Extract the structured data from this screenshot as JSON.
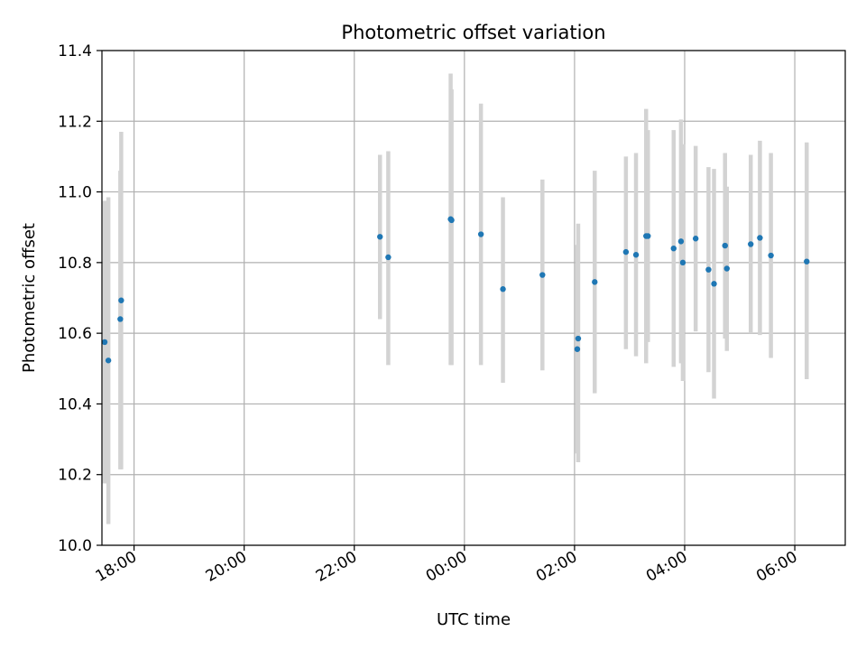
{
  "chart_data": {
    "type": "scatter",
    "title": "Photometric offset variation",
    "xlabel": "UTC time",
    "ylabel": "Photometric offset",
    "x_axis": {
      "kind": "time",
      "domain_start": "17:25",
      "domain_end": "06:55",
      "tick_labels": [
        "18:00",
        "20:00",
        "22:00",
        "00:00",
        "02:00",
        "04:00",
        "06:00"
      ]
    },
    "ylim": [
      10.0,
      11.4
    ],
    "y_ticks": [
      "10.0",
      "10.2",
      "10.4",
      "10.6",
      "10.8",
      "11.0",
      "11.2",
      "11.4"
    ],
    "grid": true,
    "marker_color": "#1f77b4",
    "errorbar_color": "#d3d3d3",
    "points": [
      {
        "time": "17:28",
        "y": 10.575,
        "ylo": 10.175,
        "yhi": 10.975
      },
      {
        "time": "17:32",
        "y": 10.523,
        "ylo": 10.06,
        "yhi": 10.985
      },
      {
        "time": "17:45",
        "y": 10.64,
        "ylo": 10.215,
        "yhi": 11.06
      },
      {
        "time": "17:46",
        "y": 10.693,
        "ylo": 10.215,
        "yhi": 11.17
      },
      {
        "time": "22:28",
        "y": 10.873,
        "ylo": 10.64,
        "yhi": 11.105
      },
      {
        "time": "22:37",
        "y": 10.815,
        "ylo": 10.51,
        "yhi": 11.115
      },
      {
        "time": "23:45",
        "y": 10.923,
        "ylo": 10.51,
        "yhi": 11.335
      },
      {
        "time": "23:46",
        "y": 10.92,
        "ylo": 10.51,
        "yhi": 11.29
      },
      {
        "time": "00:18",
        "y": 10.88,
        "ylo": 10.51,
        "yhi": 11.25
      },
      {
        "time": "00:42",
        "y": 10.725,
        "ylo": 10.46,
        "yhi": 10.985
      },
      {
        "time": "01:25",
        "y": 10.765,
        "ylo": 10.495,
        "yhi": 11.035
      },
      {
        "time": "02:03",
        "y": 10.555,
        "ylo": 10.26,
        "yhi": 10.85
      },
      {
        "time": "02:04",
        "y": 10.585,
        "ylo": 10.235,
        "yhi": 10.91
      },
      {
        "time": "02:22",
        "y": 10.745,
        "ylo": 10.43,
        "yhi": 11.06
      },
      {
        "time": "02:56",
        "y": 10.83,
        "ylo": 10.555,
        "yhi": 11.1
      },
      {
        "time": "03:07",
        "y": 10.822,
        "ylo": 10.535,
        "yhi": 11.11
      },
      {
        "time": "03:18",
        "y": 10.875,
        "ylo": 10.515,
        "yhi": 11.235
      },
      {
        "time": "03:20",
        "y": 10.875,
        "ylo": 10.575,
        "yhi": 11.175
      },
      {
        "time": "03:48",
        "y": 10.84,
        "ylo": 10.505,
        "yhi": 11.175
      },
      {
        "time": "03:56",
        "y": 10.86,
        "ylo": 10.515,
        "yhi": 11.205
      },
      {
        "time": "03:58",
        "y": 10.8,
        "ylo": 10.465,
        "yhi": 11.135
      },
      {
        "time": "04:12",
        "y": 10.868,
        "ylo": 10.605,
        "yhi": 11.13
      },
      {
        "time": "04:26",
        "y": 10.78,
        "ylo": 10.49,
        "yhi": 11.07
      },
      {
        "time": "04:32",
        "y": 10.74,
        "ylo": 10.415,
        "yhi": 11.065
      },
      {
        "time": "04:44",
        "y": 10.848,
        "ylo": 10.585,
        "yhi": 11.11
      },
      {
        "time": "04:46",
        "y": 10.783,
        "ylo": 10.55,
        "yhi": 11.015
      },
      {
        "time": "05:12",
        "y": 10.852,
        "ylo": 10.6,
        "yhi": 11.105
      },
      {
        "time": "05:22",
        "y": 10.87,
        "ylo": 10.595,
        "yhi": 11.145
      },
      {
        "time": "05:34",
        "y": 10.82,
        "ylo": 10.53,
        "yhi": 11.11
      },
      {
        "time": "06:13",
        "y": 10.803,
        "ylo": 10.47,
        "yhi": 11.14
      }
    ]
  }
}
